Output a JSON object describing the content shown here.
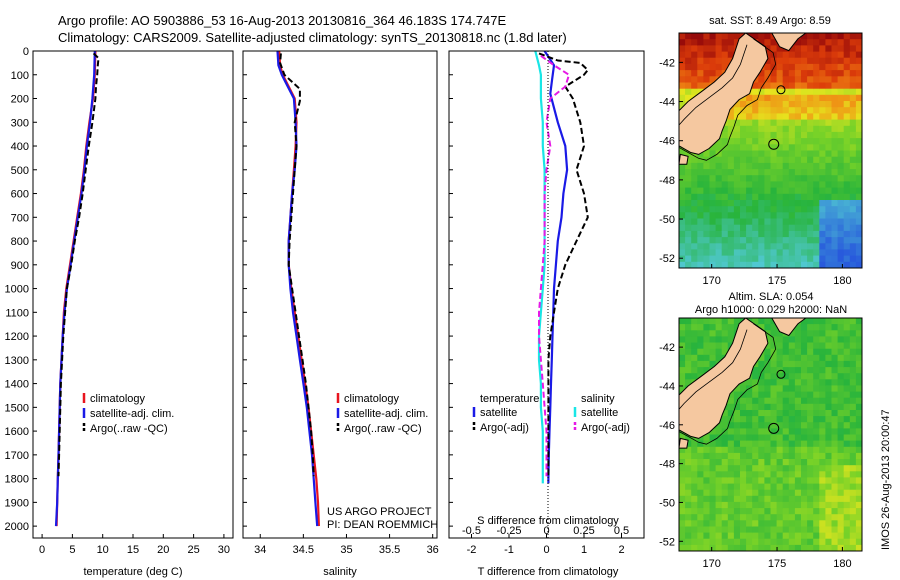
{
  "header": {
    "title_line1": "Argo profile: AO 5903886_53 16-Aug-2013 20130816_364 46.183S 174.747E",
    "title_line2": "Climatology: CARS2009. Satellite-adjusted climatology: synTS_20130818.nc (1.8d later)"
  },
  "chart_data": [
    {
      "type": "line",
      "panel": "temperature",
      "xlabel": "temperature (deg C)",
      "ylabel": "",
      "xlim": [
        -1.5,
        31.5
      ],
      "ylim": [
        2050,
        0
      ],
      "xticks": [
        "0",
        "5",
        "10",
        "15",
        "20",
        "25",
        "30"
      ],
      "yticks": [
        "0",
        "100",
        "200",
        "300",
        "400",
        "500",
        "600",
        "700",
        "800",
        "900",
        "1000",
        "1100",
        "1200",
        "1300",
        "1400",
        "1500",
        "1600",
        "1700",
        "1800",
        "1900",
        "2000"
      ],
      "legend": [
        "climatology",
        "satellite-adj. clim.",
        "Argo(..raw -QC)"
      ],
      "series": [
        {
          "name": "climatology",
          "color": "#e8141e",
          "style": "solid",
          "points": [
            [
              8.8,
              0
            ],
            [
              8.7,
              100
            ],
            [
              8.4,
              200
            ],
            [
              7.8,
              300
            ],
            [
              7.3,
              400
            ],
            [
              6.9,
              500
            ],
            [
              6.4,
              600
            ],
            [
              5.8,
              700
            ],
            [
              5.2,
              800
            ],
            [
              4.6,
              900
            ],
            [
              4.0,
              1000
            ],
            [
              3.6,
              1100
            ],
            [
              3.4,
              1200
            ],
            [
              3.2,
              1300
            ],
            [
              3.0,
              1400
            ],
            [
              2.9,
              1500
            ],
            [
              2.8,
              1600
            ],
            [
              2.7,
              1700
            ],
            [
              2.6,
              1800
            ],
            [
              2.5,
              1900
            ],
            [
              2.4,
              2000
            ]
          ]
        },
        {
          "name": "satellite-adj. clim.",
          "color": "#1a1ae6",
          "style": "solid",
          "points": [
            [
              8.7,
              0
            ],
            [
              8.6,
              100
            ],
            [
              8.3,
              200
            ],
            [
              7.9,
              300
            ],
            [
              7.4,
              400
            ],
            [
              7.0,
              500
            ],
            [
              6.5,
              600
            ],
            [
              5.9,
              700
            ],
            [
              5.3,
              800
            ],
            [
              4.7,
              900
            ],
            [
              4.1,
              1000
            ],
            [
              3.7,
              1100
            ],
            [
              3.4,
              1200
            ],
            [
              3.2,
              1300
            ],
            [
              3.0,
              1400
            ],
            [
              2.9,
              1500
            ],
            [
              2.8,
              1600
            ],
            [
              2.7,
              1700
            ],
            [
              2.6,
              1800
            ],
            [
              2.5,
              1900
            ],
            [
              2.3,
              2000
            ]
          ]
        },
        {
          "name": "Argo(..raw -QC)",
          "color": "#000000",
          "style": "dashed",
          "points": [
            [
              8.5,
              10
            ],
            [
              9.3,
              30
            ],
            [
              9.2,
              60
            ],
            [
              9.1,
              100
            ],
            [
              8.9,
              150
            ],
            [
              8.8,
              200
            ],
            [
              8.3,
              300
            ],
            [
              7.7,
              400
            ],
            [
              7.2,
              500
            ],
            [
              6.7,
              600
            ],
            [
              6.1,
              700
            ],
            [
              5.4,
              800
            ],
            [
              4.8,
              900
            ],
            [
              4.1,
              1000
            ],
            [
              3.8,
              1100
            ],
            [
              3.5,
              1200
            ],
            [
              3.3,
              1300
            ],
            [
              3.1,
              1400
            ],
            [
              3.0,
              1500
            ],
            [
              2.9,
              1600
            ],
            [
              2.8,
              1700
            ],
            [
              2.7,
              1790
            ]
          ]
        }
      ]
    },
    {
      "type": "line",
      "panel": "salinity",
      "xlabel": "salinity",
      "xlim": [
        33.8,
        36.05
      ],
      "ylim": [
        2050,
        0
      ],
      "xticks": [
        "34",
        "34.5",
        "35",
        "35.5",
        "36"
      ],
      "legend": [
        "climatology",
        "satellite-adj. clim.",
        "Argo(..raw -QC)"
      ],
      "annotation": [
        "US ARGO PROJECT",
        "PI: DEAN ROEMMICH"
      ],
      "series": [
        {
          "name": "climatology",
          "color": "#e8141e",
          "style": "solid",
          "points": [
            [
              34.22,
              0
            ],
            [
              34.23,
              60
            ],
            [
              34.26,
              100
            ],
            [
              34.33,
              150
            ],
            [
              34.4,
              200
            ],
            [
              34.42,
              300
            ],
            [
              34.41,
              400
            ],
            [
              34.39,
              500
            ],
            [
              34.37,
              600
            ],
            [
              34.35,
              700
            ],
            [
              34.33,
              800
            ],
            [
              34.33,
              900
            ],
            [
              34.36,
              1000
            ],
            [
              34.4,
              1100
            ],
            [
              34.44,
              1200
            ],
            [
              34.48,
              1300
            ],
            [
              34.52,
              1400
            ],
            [
              34.56,
              1500
            ],
            [
              34.59,
              1600
            ],
            [
              34.62,
              1700
            ],
            [
              34.65,
              1800
            ],
            [
              34.67,
              1900
            ],
            [
              34.68,
              2000
            ]
          ]
        },
        {
          "name": "satellite-adj. clim.",
          "color": "#1a1ae6",
          "style": "solid",
          "points": [
            [
              34.2,
              0
            ],
            [
              34.21,
              60
            ],
            [
              34.25,
              100
            ],
            [
              34.32,
              150
            ],
            [
              34.39,
              200
            ],
            [
              34.41,
              300
            ],
            [
              34.42,
              400
            ],
            [
              34.4,
              500
            ],
            [
              34.37,
              600
            ],
            [
              34.35,
              700
            ],
            [
              34.33,
              800
            ],
            [
              34.33,
              900
            ],
            [
              34.35,
              1000
            ],
            [
              34.38,
              1100
            ],
            [
              34.42,
              1200
            ],
            [
              34.46,
              1300
            ],
            [
              34.5,
              1400
            ],
            [
              34.54,
              1500
            ],
            [
              34.57,
              1600
            ],
            [
              34.6,
              1700
            ],
            [
              34.62,
              1800
            ],
            [
              34.64,
              1900
            ],
            [
              34.66,
              2000
            ]
          ]
        },
        {
          "name": "Argo(..raw -QC)",
          "color": "#000000",
          "style": "dashed",
          "points": [
            [
              34.24,
              10
            ],
            [
              34.23,
              50
            ],
            [
              34.28,
              100
            ],
            [
              34.46,
              160
            ],
            [
              34.46,
              210
            ],
            [
              34.4,
              300
            ],
            [
              34.42,
              400
            ],
            [
              34.4,
              500
            ],
            [
              34.38,
              600
            ],
            [
              34.36,
              700
            ],
            [
              34.34,
              800
            ],
            [
              34.33,
              900
            ],
            [
              34.37,
              1000
            ],
            [
              34.41,
              1100
            ],
            [
              34.45,
              1200
            ],
            [
              34.49,
              1300
            ],
            [
              34.53,
              1400
            ],
            [
              34.56,
              1500
            ],
            [
              34.59,
              1600
            ],
            [
              34.61,
              1700
            ],
            [
              34.62,
              1790
            ]
          ]
        }
      ]
    },
    {
      "type": "line",
      "panel": "differences",
      "xlabel": "T difference from climatology",
      "xlabel_top": "S difference from climatology",
      "xlim": [
        -2.6,
        2.6
      ],
      "ylim": [
        2050,
        0
      ],
      "xticks_bottom": [
        "-2",
        "-1",
        "0",
        "1",
        "2"
      ],
      "xticks_top": [
        "-0.5",
        "-0.25",
        "0",
        "0.25",
        "0.5"
      ],
      "legend_headers": [
        "temperature",
        "salinity"
      ],
      "legend": [
        "satellite",
        "Argo(-adj)",
        "satellite",
        "Argo(-adj)"
      ],
      "series": [
        {
          "name": "temperature satellite",
          "color": "#1a1ae6",
          "style": "solid",
          "points": [
            [
              -0.05,
              0
            ],
            [
              0.2,
              60
            ],
            [
              0.15,
              120
            ],
            [
              0.1,
              180
            ],
            [
              0.3,
              300
            ],
            [
              0.5,
              400
            ],
            [
              0.55,
              500
            ],
            [
              0.45,
              600
            ],
            [
              0.4,
              700
            ],
            [
              0.3,
              800
            ],
            [
              0.25,
              900
            ],
            [
              0.2,
              1000
            ],
            [
              0.18,
              1100
            ],
            [
              0.16,
              1200
            ],
            [
              0.14,
              1300
            ],
            [
              0.12,
              1400
            ],
            [
              0.1,
              1500
            ],
            [
              0.08,
              1600
            ],
            [
              0.06,
              1700
            ],
            [
              0.05,
              1800
            ],
            [
              0.05,
              1820
            ]
          ]
        },
        {
          "name": "temperature Argo(-adj)",
          "color": "#000000",
          "style": "dashed",
          "points": [
            [
              -0.2,
              10
            ],
            [
              0.3,
              40
            ],
            [
              0.9,
              50
            ],
            [
              1.1,
              80
            ],
            [
              1.0,
              100
            ],
            [
              0.5,
              150
            ],
            [
              0.7,
              200
            ],
            [
              0.9,
              300
            ],
            [
              1.0,
              400
            ],
            [
              0.8,
              500
            ],
            [
              1.0,
              600
            ],
            [
              1.1,
              700
            ],
            [
              0.8,
              800
            ],
            [
              0.5,
              900
            ],
            [
              0.3,
              1000
            ],
            [
              0.2,
              1100
            ],
            [
              0.1,
              1200
            ],
            [
              0.05,
              1300
            ],
            [
              0.05,
              1400
            ],
            [
              0.05,
              1500
            ],
            [
              0.05,
              1600
            ],
            [
              0.05,
              1700
            ],
            [
              0.05,
              1790
            ]
          ]
        },
        {
          "name": "salinity satellite",
          "color": "#19e6e6",
          "style": "solid",
          "points": [
            [
              -0.3,
              0
            ],
            [
              -0.2,
              60
            ],
            [
              -0.15,
              100
            ],
            [
              -0.15,
              200
            ],
            [
              -0.1,
              300
            ],
            [
              -0.1,
              400
            ],
            [
              -0.05,
              500
            ],
            [
              -0.05,
              600
            ],
            [
              -0.05,
              700
            ],
            [
              -0.05,
              800
            ],
            [
              -0.05,
              900
            ],
            [
              -0.1,
              1000
            ],
            [
              -0.15,
              1100
            ],
            [
              -0.2,
              1200
            ],
            [
              -0.2,
              1300
            ],
            [
              -0.15,
              1400
            ],
            [
              -0.15,
              1500
            ],
            [
              -0.1,
              1600
            ],
            [
              -0.1,
              1700
            ],
            [
              -0.1,
              1800
            ],
            [
              -0.1,
              1820
            ]
          ]
        },
        {
          "name": "salinity Argo(-adj)",
          "color": "#e619e6",
          "style": "dashed",
          "points": [
            [
              -0.15,
              20
            ],
            [
              0.2,
              60
            ],
            [
              0.6,
              100
            ],
            [
              0.5,
              150
            ],
            [
              0.1,
              200
            ],
            [
              0.0,
              300
            ],
            [
              0.1,
              400
            ],
            [
              0.0,
              500
            ],
            [
              -0.05,
              600
            ],
            [
              -0.05,
              700
            ],
            [
              -0.05,
              800
            ],
            [
              -0.1,
              900
            ],
            [
              -0.15,
              1000
            ],
            [
              -0.2,
              1100
            ],
            [
              -0.2,
              1200
            ],
            [
              -0.15,
              1300
            ],
            [
              -0.1,
              1400
            ],
            [
              -0.05,
              1500
            ],
            [
              0.0,
              1600
            ],
            [
              0.0,
              1700
            ],
            [
              0.0,
              1790
            ]
          ]
        }
      ]
    },
    {
      "type": "heatmap",
      "panel": "sst-map",
      "title": "sat. SST: 8.49 Argo: 8.59",
      "xticks": [
        "170",
        "175",
        "180"
      ],
      "yticks": [
        "-42",
        "-44",
        "-46",
        "-48",
        "-50",
        "-52"
      ],
      "xlim": [
        167.5,
        181.5
      ],
      "ylim": [
        -52.5,
        -40.5
      ],
      "argo_position": [
        174.747,
        -46.183
      ]
    },
    {
      "type": "heatmap",
      "panel": "sla-map",
      "title_line1": "Altim. SLA: 0.054",
      "title_line2": "Argo h1000: 0.029 h2000: NaN",
      "xticks": [
        "170",
        "175",
        "180"
      ],
      "yticks": [
        "-42",
        "-44",
        "-46",
        "-48",
        "-50",
        "-52"
      ],
      "xlim": [
        167.5,
        181.5
      ],
      "ylim": [
        -52.5,
        -40.5
      ],
      "argo_position": [
        174.747,
        -46.183
      ]
    }
  ],
  "footer": {
    "stamp": "IMOS 26-Aug-2013 20:00:47"
  }
}
